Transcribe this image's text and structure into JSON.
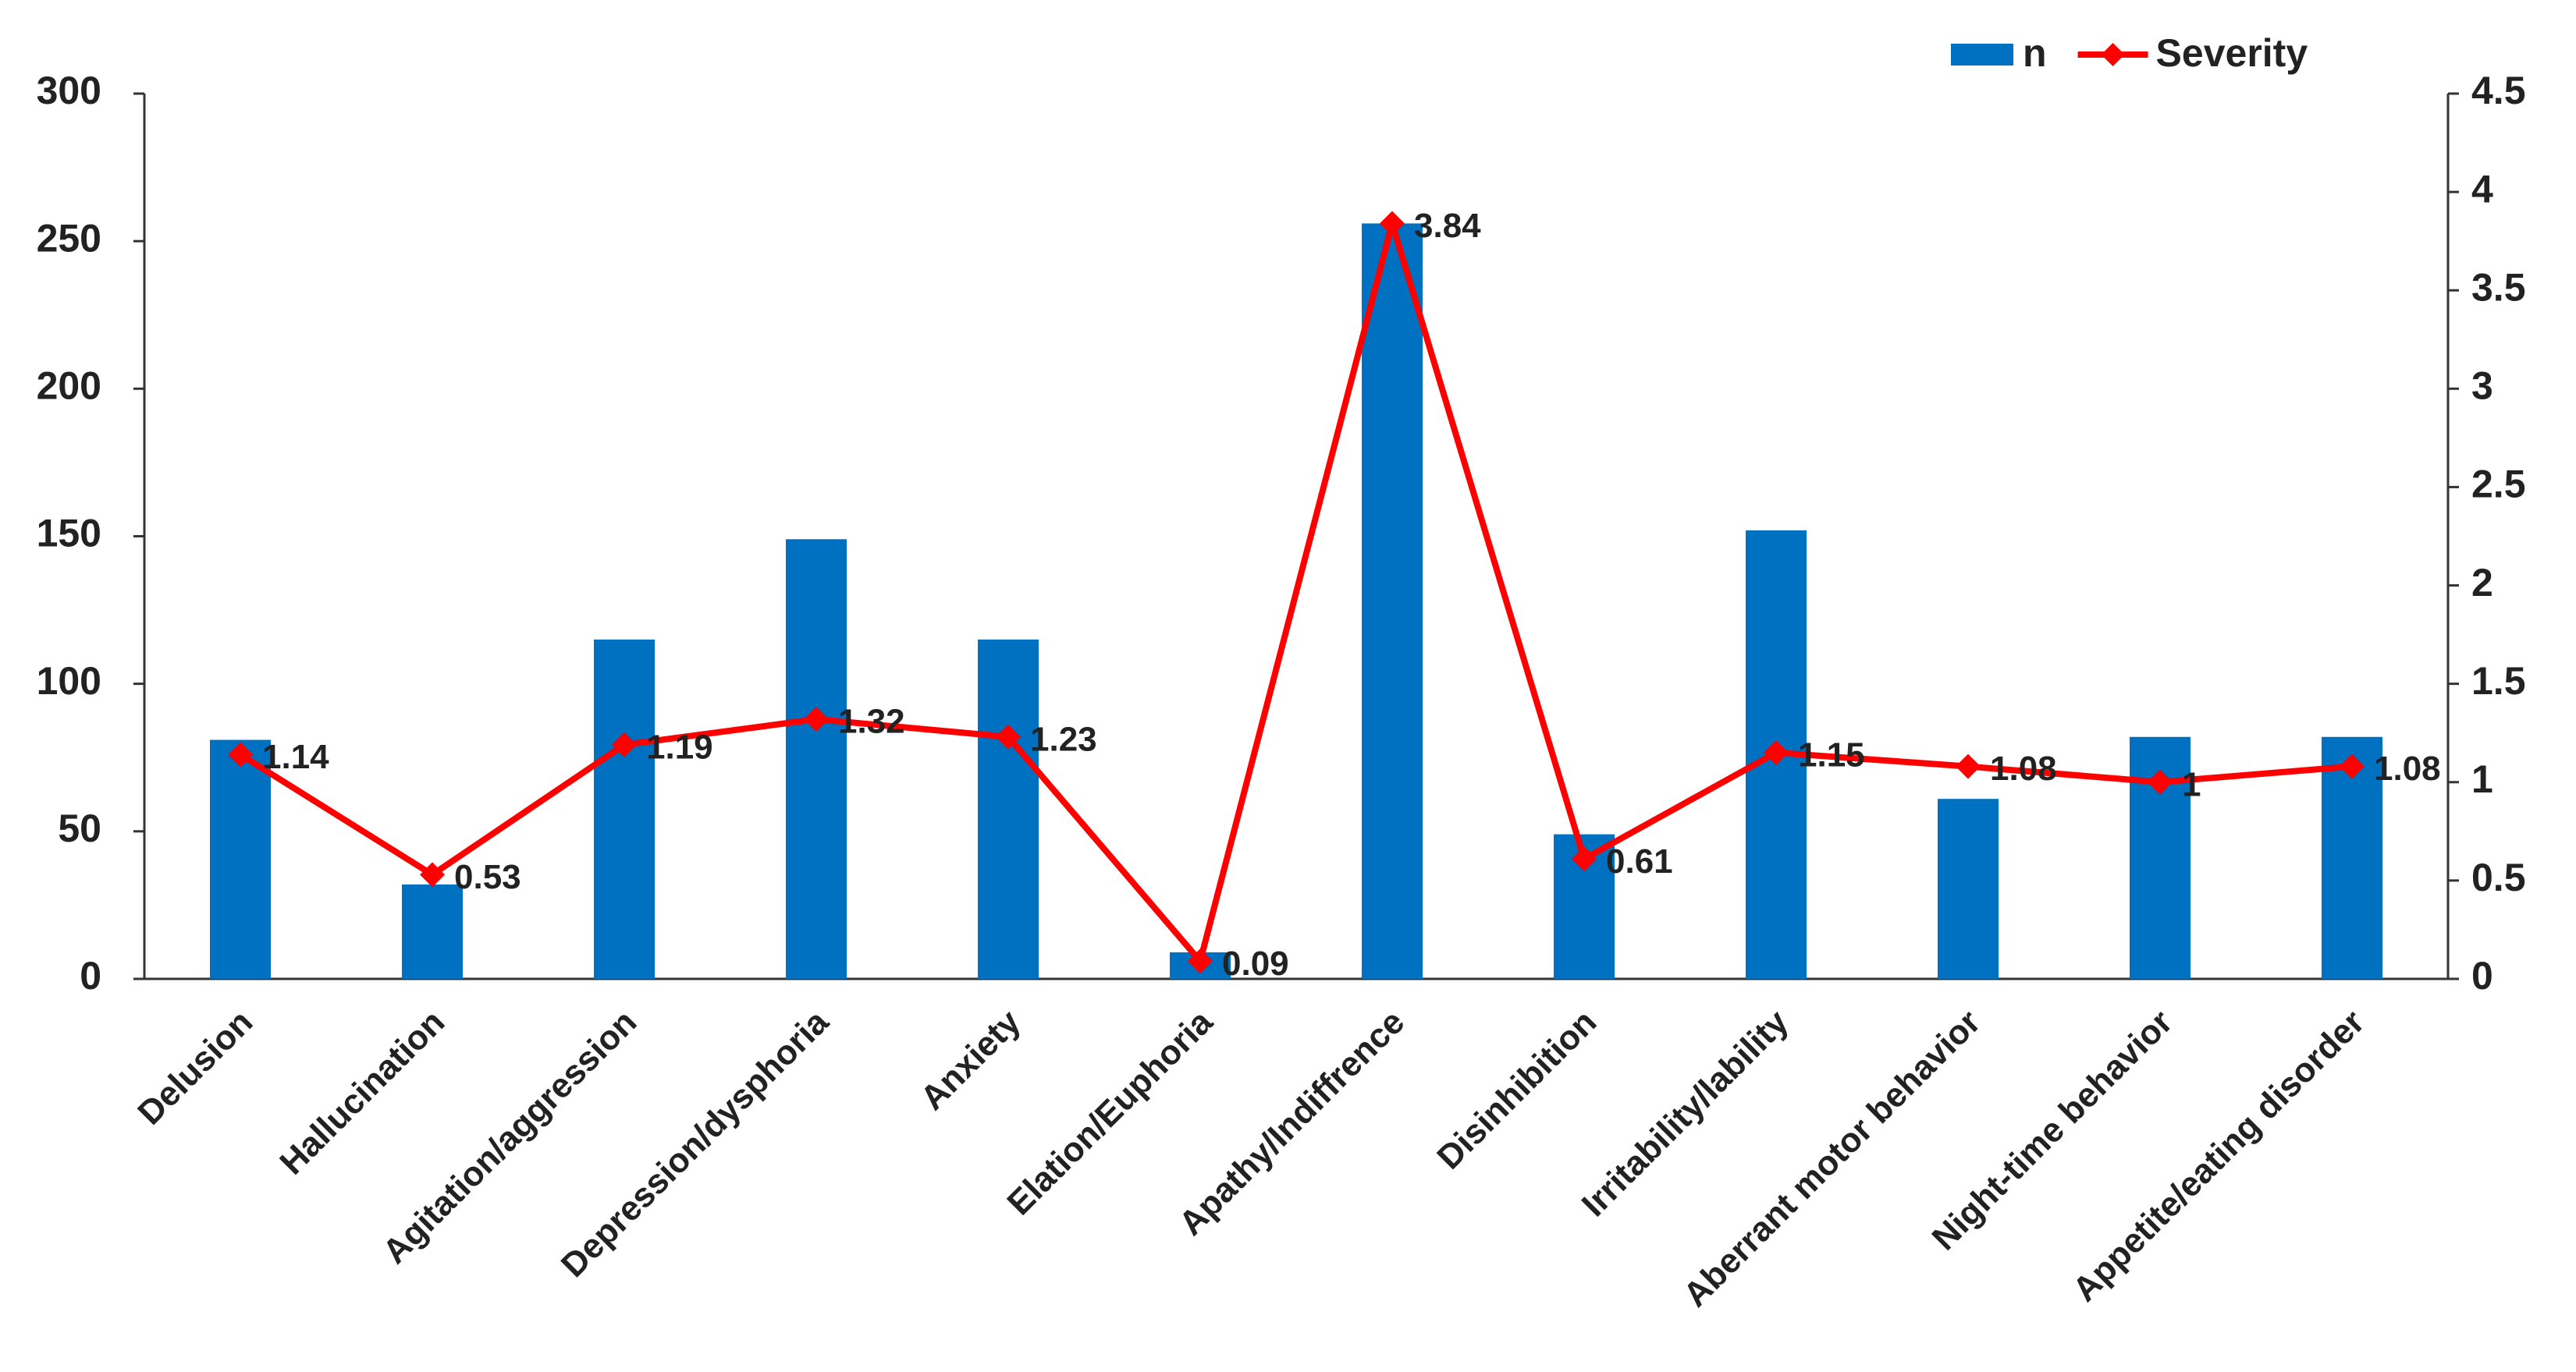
{
  "chart_data": {
    "type": "bar-line",
    "categories": [
      "Delusion",
      "Hallucination",
      "Agitation/aggression",
      "Depression/dysphoria",
      "Anxiety",
      "Elation/Euphoria",
      "Apathy/Indiffrence",
      "Disinhibition",
      "Irritability/lability",
      "Aberrant motor behavior",
      "Night-time behavior",
      "Appetite/eating disorder"
    ],
    "series": [
      {
        "name": "n",
        "type": "bar",
        "color": "#0070c0",
        "values": [
          81,
          32,
          115,
          149,
          115,
          9,
          256,
          49,
          152,
          61,
          82,
          82
        ]
      },
      {
        "name": "Severity",
        "type": "line",
        "axis": "y2",
        "color": "#ff0000",
        "values": [
          1.14,
          0.53,
          1.19,
          1.32,
          1.23,
          0.09,
          3.84,
          0.61,
          1.15,
          1.08,
          1,
          1.08
        ]
      }
    ],
    "ylim": [
      0,
      300
    ],
    "yticks": [
      0,
      50,
      100,
      150,
      200,
      250,
      300
    ],
    "y2lim": [
      0,
      4.5
    ],
    "y2ticks": [
      0,
      0.5,
      1,
      1.5,
      2,
      2.5,
      3,
      3.5,
      4,
      4.5
    ],
    "grid": false,
    "legend": "top-right"
  }
}
